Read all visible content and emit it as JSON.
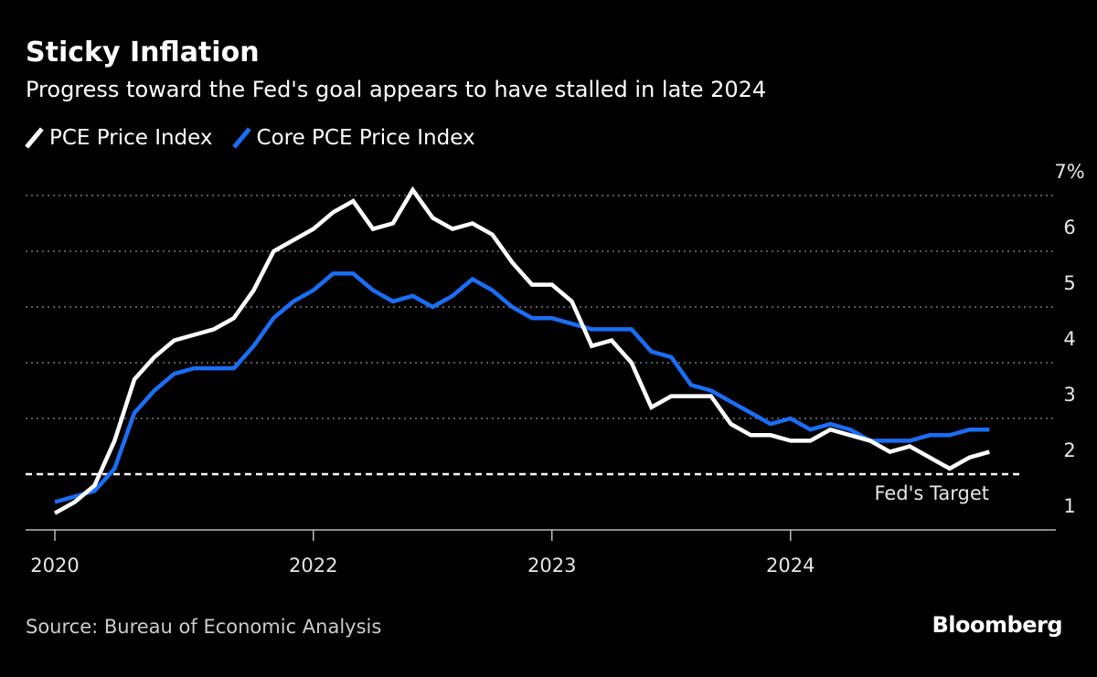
{
  "header": {
    "title": "Sticky Inflation",
    "subtitle": "Progress toward the Fed's goal appears to have stalled in late 2024"
  },
  "footer": {
    "source": "Source: Bureau of Economic Analysis",
    "logo": "Bloomberg"
  },
  "colors": {
    "pce": "#ffffff",
    "core": "#1a6ef5",
    "grid": "#777777"
  },
  "chart_data": {
    "type": "line",
    "title": "Sticky Inflation",
    "x_start": "2020-12",
    "x_unit": "month",
    "x_ticks": [
      {
        "label": "2020",
        "index": 0
      },
      {
        "label": "2022",
        "index": 13
      },
      {
        "label": "2023",
        "index": 25
      },
      {
        "label": "2024",
        "index": 37
      }
    ],
    "y_ticks": [
      "1",
      "2",
      "3",
      "4",
      "5",
      "6",
      "7%"
    ],
    "ylim": [
      1,
      7
    ],
    "target": {
      "value": 2,
      "label": "Fed's Target"
    },
    "legend_position": "top-left",
    "series": [
      {
        "name": "PCE Price Index",
        "color": "#ffffff",
        "values": [
          1.3,
          1.5,
          1.8,
          2.6,
          3.7,
          4.1,
          4.4,
          4.5,
          4.6,
          4.8,
          5.3,
          6.0,
          6.2,
          6.4,
          6.7,
          6.9,
          6.4,
          6.5,
          7.1,
          6.6,
          6.4,
          6.5,
          6.3,
          5.8,
          5.4,
          5.4,
          5.1,
          4.3,
          4.4,
          4.0,
          3.2,
          3.4,
          3.4,
          3.4,
          2.9,
          2.7,
          2.7,
          2.6,
          2.6,
          2.8,
          2.7,
          2.6,
          2.4,
          2.5,
          2.3,
          2.1,
          2.3,
          2.4
        ]
      },
      {
        "name": "Core PCE Price Index",
        "color": "#1a6ef5",
        "values": [
          1.5,
          1.6,
          1.7,
          2.1,
          3.1,
          3.5,
          3.8,
          3.9,
          3.9,
          3.9,
          4.3,
          4.8,
          5.1,
          5.3,
          5.6,
          5.6,
          5.3,
          5.1,
          5.2,
          5.0,
          5.2,
          5.5,
          5.3,
          5.0,
          4.8,
          4.8,
          4.7,
          4.6,
          4.6,
          4.6,
          4.2,
          4.1,
          3.6,
          3.5,
          3.3,
          3.1,
          2.9,
          3.0,
          2.8,
          2.9,
          2.8,
          2.6,
          2.6,
          2.6,
          2.7,
          2.7,
          2.8,
          2.8
        ]
      }
    ]
  }
}
